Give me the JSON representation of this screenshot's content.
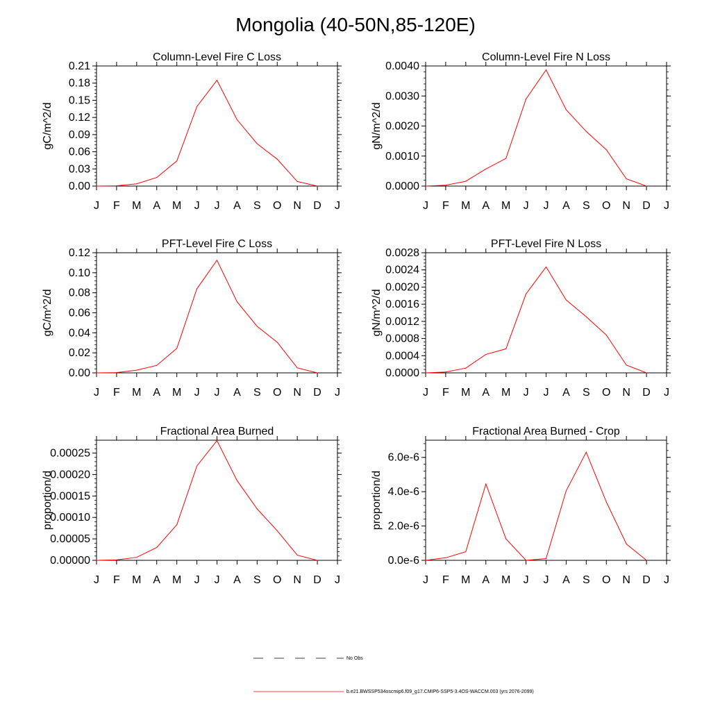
{
  "title": "Mongolia (40-50N,85-120E)",
  "colors": {
    "model": "#ff0000",
    "axis": "#000000",
    "obs": "#000000"
  },
  "months": [
    "J",
    "F",
    "M",
    "A",
    "M",
    "J",
    "J",
    "A",
    "S",
    "O",
    "N",
    "D",
    "J"
  ],
  "legend": {
    "obs_label": "No Obs",
    "model_label": "b.e21.BWSSP534oscmip6.f09_g17.CMIP6-SSP5-3.4OS-WACCM.003 (yrs 2076-2099)"
  },
  "chart_data": [
    {
      "type": "line",
      "title": "Column-Level Fire C Loss",
      "ylabel": "gC/m^2/d",
      "ylim": [
        0,
        0.21
      ],
      "yticks": [
        "0.00",
        "0.03",
        "0.06",
        "0.09",
        "0.12",
        "0.15",
        "0.18",
        "0.21"
      ],
      "x": [
        "J",
        "F",
        "M",
        "A",
        "M",
        "J",
        "J",
        "A",
        "S",
        "O",
        "N",
        "D"
      ],
      "series": [
        {
          "name": "model",
          "values": [
            0.0,
            0.0005,
            0.004,
            0.015,
            0.044,
            0.139,
            0.185,
            0.116,
            0.074,
            0.047,
            0.008,
            0.0
          ]
        }
      ]
    },
    {
      "type": "line",
      "title": "Column-Level Fire N Loss",
      "ylabel": "gN/m^2/d",
      "ylim": [
        0,
        0.004
      ],
      "yticks": [
        "0.0000",
        "0.0010",
        "0.0020",
        "0.0030",
        "0.0040"
      ],
      "x": [
        "J",
        "F",
        "M",
        "A",
        "M",
        "J",
        "J",
        "A",
        "S",
        "O",
        "N",
        "D"
      ],
      "series": [
        {
          "name": "model",
          "values": [
            0.0,
            3e-05,
            0.00016,
            0.00057,
            0.00092,
            0.0029,
            0.00387,
            0.00254,
            0.00182,
            0.00121,
            0.00024,
            0.0
          ]
        }
      ]
    },
    {
      "type": "line",
      "title": "PFT-Level Fire C Loss",
      "ylabel": "gC/m^2/d",
      "ylim": [
        0,
        0.12
      ],
      "yticks": [
        "0.00",
        "0.02",
        "0.04",
        "0.06",
        "0.08",
        "0.10",
        "0.12"
      ],
      "x": [
        "J",
        "F",
        "M",
        "A",
        "M",
        "J",
        "J",
        "A",
        "S",
        "O",
        "N",
        "D"
      ],
      "series": [
        {
          "name": "model",
          "values": [
            0.0,
            0.0003,
            0.0027,
            0.0075,
            0.0245,
            0.084,
            0.1125,
            0.071,
            0.0465,
            0.0305,
            0.005,
            0.0
          ]
        }
      ]
    },
    {
      "type": "line",
      "title": "PFT-Level Fire N Loss",
      "ylabel": "gN/m^2/d",
      "ylim": [
        0,
        0.0028
      ],
      "yticks": [
        "0.0000",
        "0.0004",
        "0.0008",
        "0.0012",
        "0.0016",
        "0.0020",
        "0.0024",
        "0.0028"
      ],
      "x": [
        "J",
        "F",
        "M",
        "A",
        "M",
        "J",
        "J",
        "A",
        "S",
        "O",
        "N",
        "D"
      ],
      "series": [
        {
          "name": "model",
          "values": [
            0.0,
            2e-05,
            0.00011,
            0.00043,
            0.00056,
            0.00184,
            0.00247,
            0.0017,
            0.00131,
            0.00088,
            0.00018,
            0.0
          ]
        }
      ]
    },
    {
      "type": "line",
      "title": "Fractional Area Burned",
      "ylabel": "proportion/d",
      "ylim": [
        0,
        0.00028
      ],
      "yticks": [
        "0.00000",
        "0.00005",
        "0.00010",
        "0.00015",
        "0.00020",
        "0.00025"
      ],
      "ytick_values": [
        0,
        5e-05,
        0.0001,
        0.00015,
        0.0002,
        0.00025
      ],
      "x": [
        "J",
        "F",
        "M",
        "A",
        "M",
        "J",
        "J",
        "A",
        "S",
        "O",
        "N",
        "D"
      ],
      "series": [
        {
          "name": "model",
          "values": [
            0.0,
            1e-06,
            7e-06,
            3e-05,
            8.3e-05,
            0.00022,
            0.000279,
            0.000186,
            0.00012,
            6.9e-05,
            1.2e-05,
            0.0
          ]
        }
      ]
    },
    {
      "type": "line",
      "title": "Fractional Area Burned - Crop",
      "ylabel": "proportion/d",
      "ylim": [
        0,
        7e-06
      ],
      "yticks": [
        "0.0e-6",
        "2.0e-6",
        "4.0e-6",
        "6.0e-6"
      ],
      "ytick_values": [
        0,
        2e-06,
        4e-06,
        6e-06
      ],
      "x": [
        "J",
        "F",
        "M",
        "A",
        "M",
        "J",
        "J",
        "A",
        "S",
        "O",
        "N",
        "D"
      ],
      "series": [
        {
          "name": "model",
          "values": [
            0.0,
            1.5e-07,
            5e-07,
            4.45e-06,
            1.25e-06,
            0.0,
            1e-07,
            4.05e-06,
            6.3e-06,
            3.4e-06,
            9.5e-07,
            0.0
          ]
        }
      ]
    }
  ]
}
